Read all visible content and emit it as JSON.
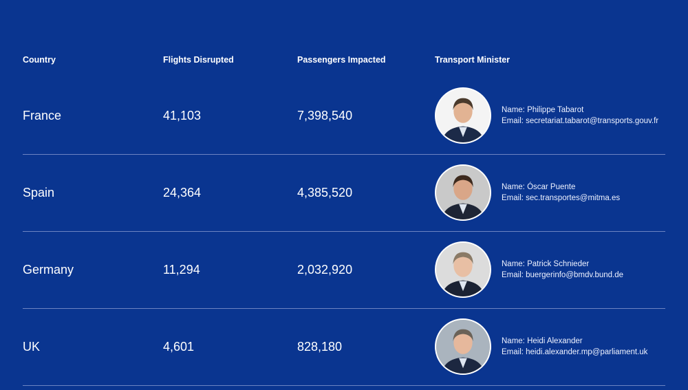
{
  "headers": {
    "country": "Country",
    "flights": "Flights Disrupted",
    "passengers": "Passengers Impacted",
    "minister": "Transport Minister"
  },
  "rows": [
    {
      "country": "France",
      "flights": "41,103",
      "passengers": "7,398,540",
      "name": "Name: Philippe Tabarot",
      "email": "Email: secretariat.tabarot@transports.gouv.fr",
      "photo_bg": "#f4f4f4",
      "hair": "#4a3a2c",
      "suit": "#1c2a48",
      "skin": "#e2b393"
    },
    {
      "country": "Spain",
      "flights": "24,364",
      "passengers": "4,385,520",
      "name": "Name: Óscar Puente",
      "email": "Email: sec.transportes@mitma.es",
      "photo_bg": "#c9c9c9",
      "hair": "#3d2a1e",
      "suit": "#1e2535",
      "skin": "#d9a688"
    },
    {
      "country": "Germany",
      "flights": "11,294",
      "passengers": "2,032,920",
      "name": "Name: Patrick Schnieder",
      "email": "Email: buergerinfo@bmdv.bund.de",
      "photo_bg": "#dcdcdc",
      "hair": "#8a7a66",
      "suit": "#1b2233",
      "skin": "#e8bfa4"
    },
    {
      "country": "UK",
      "flights": "4,601",
      "passengers": "828,180",
      "name": "Name: Heidi Alexander",
      "email": "Email: heidi.alexander.mp@parliament.uk",
      "photo_bg": "#aab4be",
      "hair": "#6a6258",
      "suit": "#1c2740",
      "skin": "#e6b89c"
    }
  ]
}
